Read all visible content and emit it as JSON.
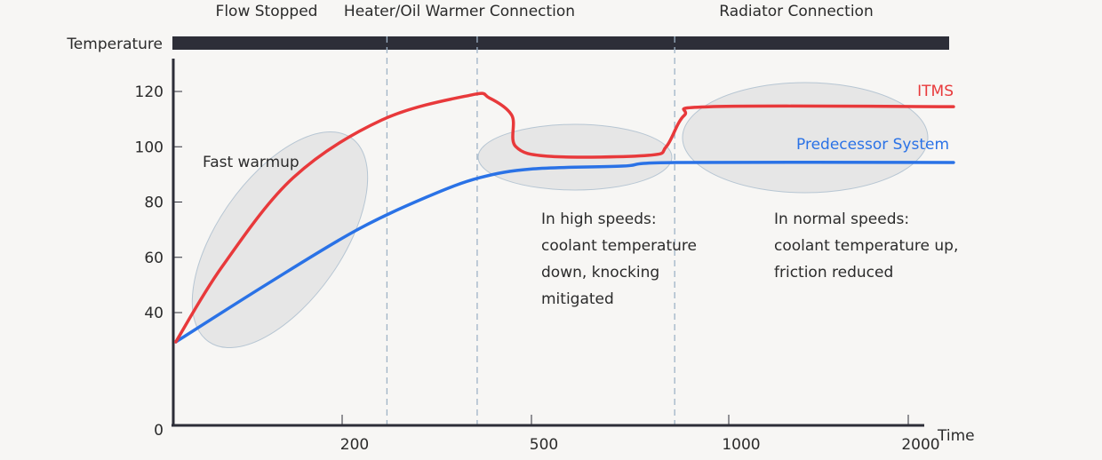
{
  "chart_data": {
    "type": "line",
    "title": "",
    "xlabel": "Time",
    "ylabel": "Temperature",
    "x_ticks": [
      200,
      500,
      1000,
      2000
    ],
    "y_ticks": [
      0,
      40,
      60,
      80,
      100,
      120
    ],
    "phases": [
      {
        "label": "Flow Stopped"
      },
      {
        "label": "Heater/Oil Warmer Connection"
      },
      {
        "label": "Radiator Connection"
      }
    ],
    "phase_boundaries": [
      271,
      414,
      863
    ],
    "series": [
      {
        "name": "ITMS",
        "color": "#e8393b",
        "x": [
          3,
          58,
          142,
          263,
          404,
          433,
          469,
          475,
          550,
          797,
          842,
          887,
          955,
          2228
        ],
        "y": [
          29.4,
          56.7,
          88.8,
          109.7,
          118.7,
          117.7,
          111.3,
          100.1,
          96.5,
          96.9,
          100.1,
          111.3,
          114.5,
          114.5
        ]
      },
      {
        "name": "Predecessor System",
        "color": "#2a72e6",
        "x": [
          3,
          111,
          221,
          334,
          418,
          504,
          730,
          865,
          2228
        ],
        "y": [
          29.4,
          50.3,
          69.6,
          81.8,
          88.8,
          92.0,
          93.0,
          94.3,
          94.3
        ]
      }
    ],
    "annotations": [
      {
        "text": [
          "Fast warmup"
        ]
      },
      {
        "text": [
          "In high speeds:",
          "coolant temperature",
          "down, knocking",
          "mitigated"
        ]
      },
      {
        "text": [
          "In normal speeds:",
          "coolant temperature up,",
          "friction reduced"
        ]
      }
    ]
  }
}
